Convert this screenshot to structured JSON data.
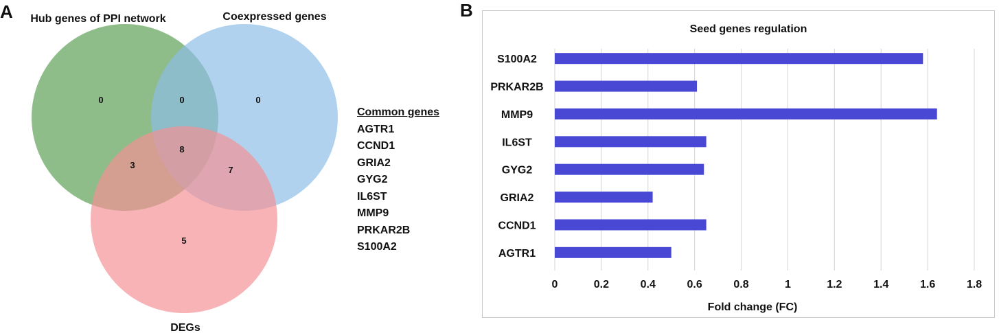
{
  "panels": {
    "a": "A",
    "b": "B"
  },
  "venn": {
    "sets": [
      {
        "name": "Hub genes of PPI network",
        "color": "#5a9e52"
      },
      {
        "name": "Coexpressed genes",
        "color": "#8bbde6"
      },
      {
        "name": "DEGs",
        "color": "#f48f93"
      }
    ],
    "regions": {
      "hub_only": "0",
      "coexp_only": "0",
      "degs_only": "5",
      "hub_coexp": "0",
      "hub_degs": "3",
      "coexp_degs": "7",
      "all_three": "8"
    }
  },
  "common_genes": {
    "header": "Common genes",
    "items": [
      "AGTR1",
      "CCND1",
      "GRIA2",
      "GYG2",
      "IL6ST",
      "MMP9",
      "PRKAR2B",
      "S100A2"
    ]
  },
  "chart_data": {
    "type": "bar",
    "orientation": "horizontal",
    "title": "Seed genes regulation",
    "xlabel": "Fold change (FC)",
    "ylabel": "",
    "categories": [
      "S100A2",
      "PRKAR2B",
      "MMP9",
      "IL6ST",
      "GYG2",
      "GRIA2",
      "CCND1",
      "AGTR1"
    ],
    "values": [
      1.58,
      0.61,
      1.64,
      0.65,
      0.64,
      0.42,
      0.65,
      0.5
    ],
    "xlim": [
      0,
      1.8
    ],
    "xticks": [
      "0",
      "0.2",
      "0.4",
      "0.6",
      "0.8",
      "1",
      "1.2",
      "1.4",
      "1.6",
      "1.8"
    ],
    "grid": "vertical",
    "bar_color": "#4848d4",
    "legend": "none"
  }
}
